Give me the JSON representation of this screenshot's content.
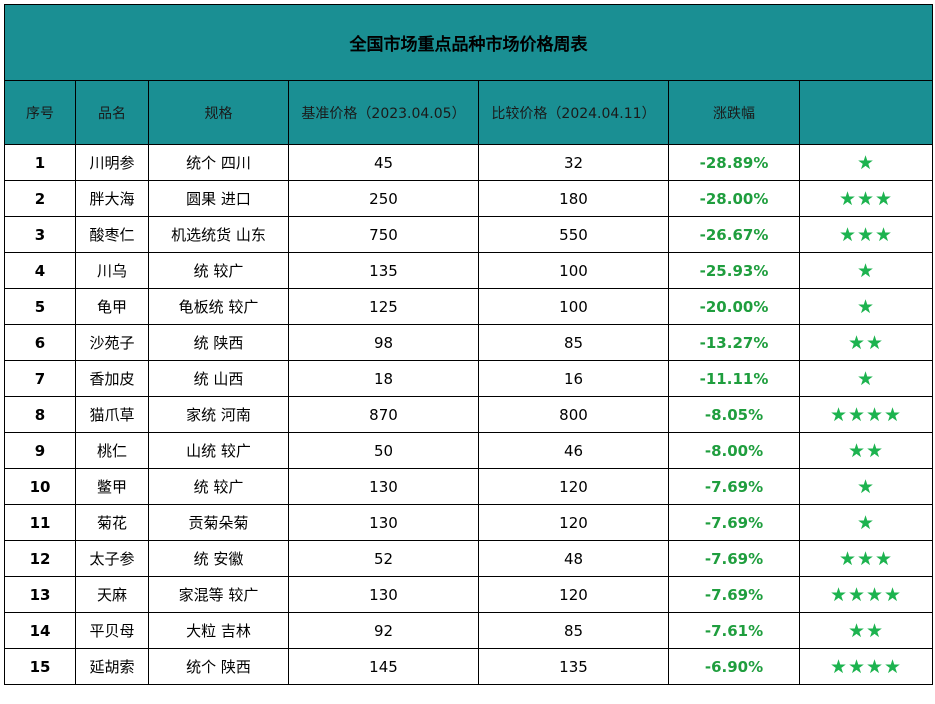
{
  "title": "全国市场重点品种市场价格周表",
  "headers": {
    "index": "序号",
    "name": "品名",
    "spec": "规格",
    "base_price": "基准价格（2023.04.05）",
    "compare_price": "比较价格（2024.04.11）",
    "change": "涨跌幅",
    "rating": ""
  },
  "colors": {
    "header_bg": "#1a8f93",
    "change_text": "#1f9e3e",
    "star": "#1db34f"
  },
  "rows": [
    {
      "index": "1",
      "name": "川明参",
      "spec": "统个 四川",
      "base": "45",
      "compare": "32",
      "change": "-28.89%",
      "stars": "★"
    },
    {
      "index": "2",
      "name": "胖大海",
      "spec": "圆果 进口",
      "base": "250",
      "compare": "180",
      "change": "-28.00%",
      "stars": "★★★"
    },
    {
      "index": "3",
      "name": "酸枣仁",
      "spec": "机选统货 山东",
      "base": "750",
      "compare": "550",
      "change": "-26.67%",
      "stars": "★★★"
    },
    {
      "index": "4",
      "name": "川乌",
      "spec": "统 较广",
      "base": "135",
      "compare": "100",
      "change": "-25.93%",
      "stars": "★"
    },
    {
      "index": "5",
      "name": "龟甲",
      "spec": "龟板统 较广",
      "base": "125",
      "compare": "100",
      "change": "-20.00%",
      "stars": "★"
    },
    {
      "index": "6",
      "name": "沙苑子",
      "spec": "统 陕西",
      "base": "98",
      "compare": "85",
      "change": "-13.27%",
      "stars": "★★"
    },
    {
      "index": "7",
      "name": "香加皮",
      "spec": "统 山西",
      "base": "18",
      "compare": "16",
      "change": "-11.11%",
      "stars": "★"
    },
    {
      "index": "8",
      "name": "猫爪草",
      "spec": "家统 河南",
      "base": "870",
      "compare": "800",
      "change": "-8.05%",
      "stars": "★★★★"
    },
    {
      "index": "9",
      "name": "桃仁",
      "spec": "山统 较广",
      "base": "50",
      "compare": "46",
      "change": "-8.00%",
      "stars": "★★"
    },
    {
      "index": "10",
      "name": "鳖甲",
      "spec": "统 较广",
      "base": "130",
      "compare": "120",
      "change": "-7.69%",
      "stars": "★"
    },
    {
      "index": "11",
      "name": "菊花",
      "spec": "贡菊朵菊",
      "base": "130",
      "compare": "120",
      "change": "-7.69%",
      "stars": "★"
    },
    {
      "index": "12",
      "name": "太子参",
      "spec": "统 安徽",
      "base": "52",
      "compare": "48",
      "change": "-7.69%",
      "stars": "★★★"
    },
    {
      "index": "13",
      "name": "天麻",
      "spec": "家混等 较广",
      "base": "130",
      "compare": "120",
      "change": "-7.69%",
      "stars": "★★★★"
    },
    {
      "index": "14",
      "name": "平贝母",
      "spec": "大粒 吉林",
      "base": "92",
      "compare": "85",
      "change": "-7.61%",
      "stars": "★★"
    },
    {
      "index": "15",
      "name": "延胡索",
      "spec": "统个 陕西",
      "base": "145",
      "compare": "135",
      "change": "-6.90%",
      "stars": "★★★★"
    }
  ]
}
